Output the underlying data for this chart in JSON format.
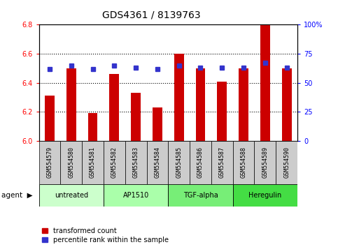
{
  "title": "GDS4361 / 8139763",
  "samples": [
    "GSM554579",
    "GSM554580",
    "GSM554581",
    "GSM554582",
    "GSM554583",
    "GSM554584",
    "GSM554585",
    "GSM554586",
    "GSM554587",
    "GSM554588",
    "GSM554589",
    "GSM554590"
  ],
  "red_values": [
    6.31,
    6.5,
    6.19,
    6.46,
    6.33,
    6.23,
    6.6,
    6.5,
    6.41,
    6.5,
    6.8,
    6.5
  ],
  "blue_values": [
    62,
    65,
    62,
    65,
    63,
    62,
    65,
    63,
    63,
    63,
    67,
    63
  ],
  "ylim_left": [
    6.0,
    6.8
  ],
  "ylim_right": [
    0,
    100
  ],
  "yticks_left": [
    6.0,
    6.2,
    6.4,
    6.6,
    6.8
  ],
  "yticks_right": [
    0,
    25,
    50,
    75,
    100
  ],
  "yticklabels_right": [
    "0",
    "25",
    "50",
    "75",
    "100%"
  ],
  "grid_lines": [
    6.2,
    6.4,
    6.6
  ],
  "groups": [
    {
      "label": "untreated",
      "start": 0,
      "end": 3,
      "color": "#ccffcc"
    },
    {
      "label": "AP1510",
      "start": 3,
      "end": 6,
      "color": "#aaffaa"
    },
    {
      "label": "TGF-alpha",
      "start": 6,
      "end": 9,
      "color": "#77ee77"
    },
    {
      "label": "Heregulin",
      "start": 9,
      "end": 12,
      "color": "#44dd44"
    }
  ],
  "bar_color": "#cc0000",
  "dot_color": "#3333cc",
  "bar_width": 0.45,
  "dot_size": 5,
  "sample_box_color": "#cccccc",
  "legend_items": [
    {
      "label": "transformed count",
      "color": "#cc0000"
    },
    {
      "label": "percentile rank within the sample",
      "color": "#3333cc"
    }
  ],
  "title_fontsize": 10,
  "tick_fontsize": 7,
  "label_fontsize": 6,
  "group_fontsize": 7,
  "legend_fontsize": 7,
  "agent_fontsize": 7.5
}
